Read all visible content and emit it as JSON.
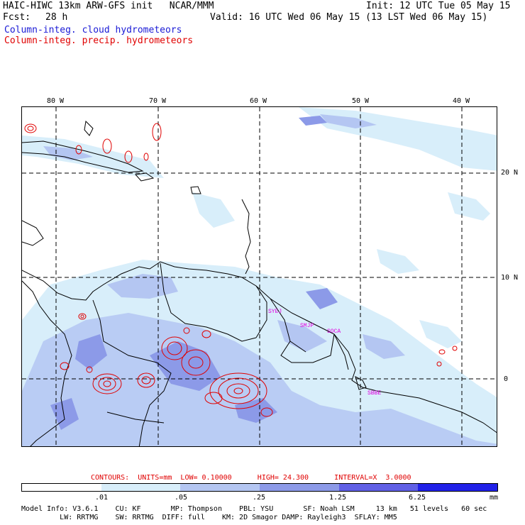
{
  "header": {
    "model_line": "HAIC-HIWC 13km ARW-GFS init   NCAR/MMM",
    "init": "Init: 12 UTC Tue 05 May 15",
    "fcst_label": "Fcst:",
    "fcst_value": "28 h",
    "valid": "Valid: 16 UTC Wed 06 May 15 (13 LST Wed 06 May 15)",
    "field1": "Column-integ. cloud hydrometeors",
    "field2": "Column-integ. precip. hydrometeors",
    "field1_color": "#1a1ad6",
    "field2_color": "#e00000"
  },
  "map": {
    "lon_labels": [
      "80 W",
      "70 W",
      "60 W",
      "50 W",
      "40 W"
    ],
    "lat_labels": [
      "20 N",
      "10 N",
      "0"
    ],
    "stations": [
      "SYEJ",
      "SMJP",
      "SOCA",
      "SBBE"
    ],
    "station_color": "#e000e0"
  },
  "contours": {
    "text": "CONTOURS:  UNITS=mm  LOW= 0.10000      HIGH= 24.300      INTERVAL=X  3.0000",
    "color": "#e00000"
  },
  "colorbar": {
    "colors": [
      "#ffffff",
      "#d8eefa",
      "#b4c6f2",
      "#8c9ae8",
      "#6060e6",
      "#2020e8"
    ],
    "ticks": [
      ".01",
      ".05",
      ".25",
      "1.25",
      "6.25"
    ],
    "units": "mm"
  },
  "footer": {
    "line1": "Model Info: V3.6.1    CU: KF       MP: Thompson    PBL: YSU       SF: Noah LSM     13 km   51 levels   60 sec",
    "line2": "         LW: RRTMG    SW: RRTMG  DIFF: full    KM: 2D Smagor DAMP: Rayleigh3  SFLAY: MM5"
  }
}
